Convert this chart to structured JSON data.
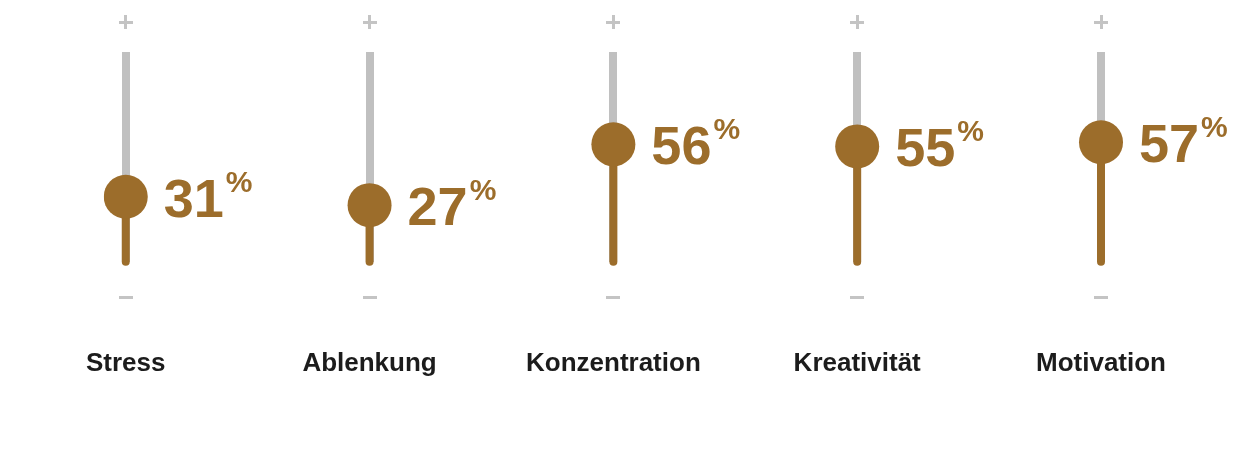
{
  "chart_data": {
    "type": "lollipop",
    "categories": [
      "Stress",
      "Ablenkung",
      "Konzentration",
      "Kreativität",
      "Motivation"
    ],
    "values": [
      31,
      27,
      56,
      55,
      57
    ],
    "value_labels": [
      "31%",
      "27%",
      "56%",
      "55%",
      "57%"
    ],
    "color": "#9c6d2b",
    "ylim": [
      0,
      100
    ],
    "tick_labels": "x",
    "grid": "x",
    "legend": false,
    "marker": "circle"
  }
}
